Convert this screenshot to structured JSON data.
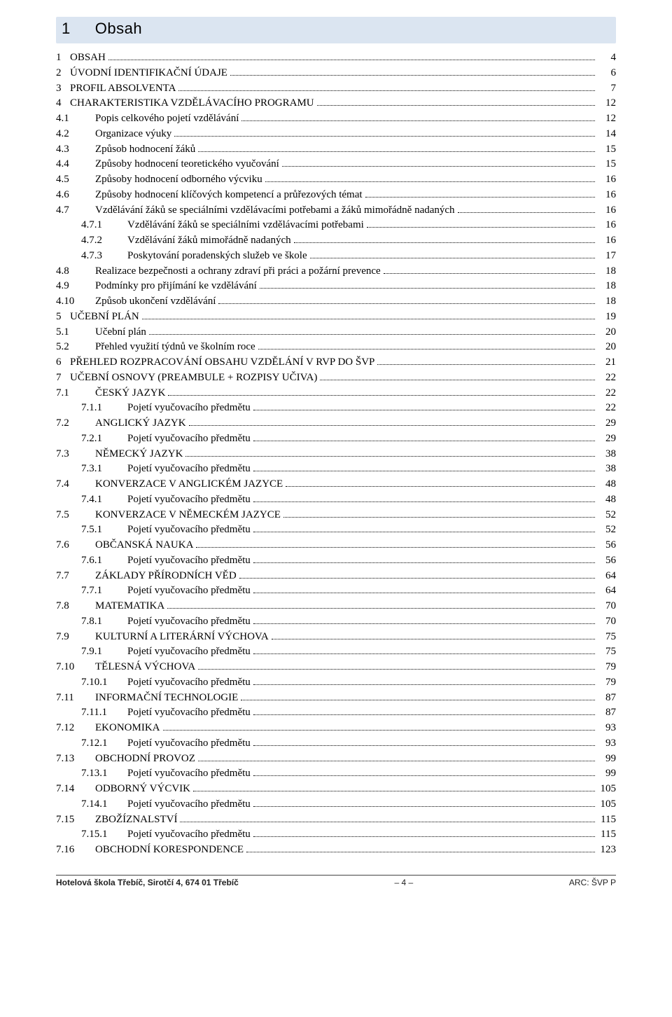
{
  "colors": {
    "header_bg": "#dbe5f1",
    "text": "#000000",
    "page_bg": "#ffffff",
    "footer_border": "#444444"
  },
  "typography": {
    "header_font": "Arial",
    "header_size_pt": 16,
    "body_font": "Times New Roman",
    "body_size_pt": 11,
    "footer_font": "Arial",
    "footer_size_pt": 9
  },
  "header": {
    "number": "1",
    "title": "Obsah"
  },
  "toc": [
    {
      "n": "1",
      "t": "OBSAH",
      "p": "4",
      "lvl": 1
    },
    {
      "n": "2",
      "t": "ÚVODNÍ IDENTIFIKAČNÍ ÚDAJE",
      "p": "6",
      "lvl": 1
    },
    {
      "n": "3",
      "t": "PROFIL ABSOLVENTA",
      "p": "7",
      "lvl": 1
    },
    {
      "n": "4",
      "t": "CHARAKTERISTIKA VZDĚLÁVACÍHO PROGRAMU",
      "p": "12",
      "lvl": 1
    },
    {
      "n": "4.1",
      "t": "Popis celkového pojetí vzdělávání",
      "p": "12",
      "lvl": 2
    },
    {
      "n": "4.2",
      "t": "Organizace výuky",
      "p": "14",
      "lvl": 2
    },
    {
      "n": "4.3",
      "t": "Způsob hodnocení žáků",
      "p": "15",
      "lvl": 2
    },
    {
      "n": "4.4",
      "t": "Způsoby hodnocení teoretického vyučování",
      "p": "15",
      "lvl": 2
    },
    {
      "n": "4.5",
      "t": "Způsoby hodnocení odborného výcviku",
      "p": "16",
      "lvl": 2
    },
    {
      "n": "4.6",
      "t": "Způsoby hodnocení klíčových kompetencí a průřezových témat",
      "p": "16",
      "lvl": 2
    },
    {
      "n": "4.7",
      "t": "Vzdělávání žáků se speciálními vzdělávacími potřebami a žáků mimořádně nadaných",
      "p": "16",
      "lvl": 2
    },
    {
      "n": "4.7.1",
      "t": "Vzdělávání žáků se speciálními vzdělávacími potřebami",
      "p": "16",
      "lvl": 3
    },
    {
      "n": "4.7.2",
      "t": "Vzdělávání žáků mimořádně nadaných",
      "p": "16",
      "lvl": 3
    },
    {
      "n": "4.7.3",
      "t": "Poskytování poradenských služeb ve škole",
      "p": "17",
      "lvl": 3
    },
    {
      "n": "4.8",
      "t": "Realizace bezpečnosti a ochrany zdraví při práci a požární prevence",
      "p": "18",
      "lvl": 2
    },
    {
      "n": "4.9",
      "t": "Podmínky pro přijímání ke vzdělávání",
      "p": "18",
      "lvl": 2
    },
    {
      "n": "4.10",
      "t": "Způsob ukončení vzdělávání",
      "p": "18",
      "lvl": 2
    },
    {
      "n": "5",
      "t": "UČEBNÍ PLÁN",
      "p": "19",
      "lvl": 1
    },
    {
      "n": "5.1",
      "t": "Učební plán",
      "p": "20",
      "lvl": 2
    },
    {
      "n": "5.2",
      "t": "Přehled využití týdnů ve školním roce",
      "p": "20",
      "lvl": 2
    },
    {
      "n": "6",
      "t": "PŘEHLED ROZPRACOVÁNÍ OBSAHU VZDĚLÁNÍ V RVP DO ŠVP",
      "p": "21",
      "lvl": 1
    },
    {
      "n": "7",
      "t": "UČEBNÍ OSNOVY (PREAMBULE + ROZPISY UČIVA)",
      "p": "22",
      "lvl": 1
    },
    {
      "n": "7.1",
      "t": "ČESKÝ JAZYK",
      "p": "22",
      "lvl": 2
    },
    {
      "n": "7.1.1",
      "t": "Pojetí vyučovacího předmětu",
      "p": "22",
      "lvl": 3
    },
    {
      "n": "7.2",
      "t": "ANGLICKÝ JAZYK",
      "p": "29",
      "lvl": 2
    },
    {
      "n": "7.2.1",
      "t": "Pojetí vyučovacího předmětu",
      "p": "29",
      "lvl": 3
    },
    {
      "n": "7.3",
      "t": "NĚMECKÝ JAZYK",
      "p": "38",
      "lvl": 2
    },
    {
      "n": "7.3.1",
      "t": "Pojetí vyučovacího předmětu",
      "p": "38",
      "lvl": 3
    },
    {
      "n": "7.4",
      "t": "KONVERZACE V ANGLICKÉM JAZYCE",
      "p": "48",
      "lvl": 2
    },
    {
      "n": "7.4.1",
      "t": "Pojetí vyučovacího předmětu",
      "p": "48",
      "lvl": 3
    },
    {
      "n": "7.5",
      "t": "KONVERZACE V NĚMECKÉM JAZYCE",
      "p": "52",
      "lvl": 2
    },
    {
      "n": "7.5.1",
      "t": "Pojetí vyučovacího předmětu",
      "p": "52",
      "lvl": 3
    },
    {
      "n": "7.6",
      "t": "OBČANSKÁ NAUKA",
      "p": "56",
      "lvl": 2
    },
    {
      "n": "7.6.1",
      "t": "Pojetí vyučovacího předmětu",
      "p": "56",
      "lvl": 3
    },
    {
      "n": "7.7",
      "t": "ZÁKLADY PŘÍRODNÍCH VĚD",
      "p": "64",
      "lvl": 2
    },
    {
      "n": "7.7.1",
      "t": "Pojetí vyučovacího předmětu",
      "p": "64",
      "lvl": 3
    },
    {
      "n": "7.8",
      "t": "MATEMATIKA",
      "p": "70",
      "lvl": 2
    },
    {
      "n": "7.8.1",
      "t": "Pojetí vyučovacího předmětu",
      "p": "70",
      "lvl": 3
    },
    {
      "n": "7.9",
      "t": "KULTURNÍ  A  LITERÁRNÍ  VÝCHOVA",
      "p": "75",
      "lvl": 2
    },
    {
      "n": "7.9.1",
      "t": "Pojetí vyučovacího předmětu",
      "p": "75",
      "lvl": 3
    },
    {
      "n": "7.10",
      "t": "TĚLESNÁ VÝCHOVA",
      "p": "79",
      "lvl": 2
    },
    {
      "n": "7.10.1",
      "t": "Pojetí vyučovacího předmětu",
      "p": "79",
      "lvl": 3
    },
    {
      "n": "7.11",
      "t": "INFORMAČNÍ TECHNOLOGIE",
      "p": "87",
      "lvl": 2
    },
    {
      "n": "7.11.1",
      "t": "Pojetí vyučovacího předmětu",
      "p": "87",
      "lvl": 3
    },
    {
      "n": "7.12",
      "t": "EKONOMIKA",
      "p": "93",
      "lvl": 2
    },
    {
      "n": "7.12.1",
      "t": "Pojetí vyučovacího předmětu",
      "p": "93",
      "lvl": 3
    },
    {
      "n": "7.13",
      "t": "OBCHODNÍ  PROVOZ",
      "p": "99",
      "lvl": 2
    },
    {
      "n": "7.13.1",
      "t": "Pojetí vyučovacího předmětu",
      "p": "99",
      "lvl": 3
    },
    {
      "n": "7.14",
      "t": "ODBORNÝ  VÝCVIK",
      "p": "105",
      "lvl": 2
    },
    {
      "n": "7.14.1",
      "t": "Pojetí vyučovacího předmětu",
      "p": "105",
      "lvl": 3
    },
    {
      "n": "7.15",
      "t": "ZBOŽÍZNALSTVÍ",
      "p": "115",
      "lvl": 2
    },
    {
      "n": "7.15.1",
      "t": "Pojetí vyučovacího předmětu",
      "p": "115",
      "lvl": 3
    },
    {
      "n": "7.16",
      "t": "OBCHODNÍ  KORESPONDENCE",
      "p": "123",
      "lvl": 2
    }
  ],
  "footer": {
    "left": "Hotelová škola Třebíč, Sirotčí 4, 674 01 Třebíč",
    "center": "– 4 –",
    "right": "ARC: ŠVP P"
  }
}
